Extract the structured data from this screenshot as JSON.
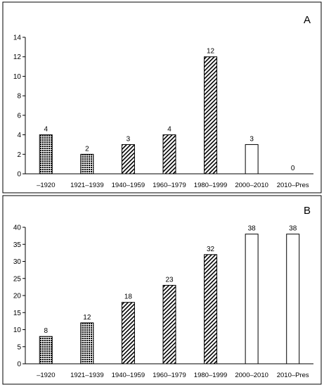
{
  "chart_data": [
    {
      "type": "bar",
      "title": "A",
      "categories": [
        "–1920",
        "1921–1939",
        "1940–1959",
        "1960–1979",
        "1980–1999",
        "2000–2010",
        "2010–Pres"
      ],
      "values": [
        4,
        2,
        3,
        4,
        12,
        3,
        0
      ],
      "data_labels": [
        "4",
        "2",
        "3",
        "4",
        "12",
        "3",
        "0"
      ],
      "ylim": [
        0,
        14
      ],
      "yticks": [
        "0",
        "2",
        "4",
        "6",
        "8",
        "10",
        "12",
        "14"
      ],
      "bar_styles": [
        "dotted",
        "dotted",
        "hatched",
        "hatched",
        "hatched",
        "open",
        "open"
      ],
      "grid": false
    },
    {
      "type": "bar",
      "title": "B",
      "categories": [
        "–1920",
        "1921–1939",
        "1940–1959",
        "1960–1979",
        "1980–1999",
        "2000–2010",
        "2010–Pres"
      ],
      "values": [
        8,
        12,
        18,
        23,
        32,
        38,
        38
      ],
      "data_labels": [
        "8",
        "12",
        "18",
        "23",
        "32",
        "38",
        "38"
      ],
      "ylim": [
        0,
        40
      ],
      "yticks": [
        "0",
        "5",
        "10",
        "15",
        "20",
        "25",
        "30",
        "35",
        "40"
      ],
      "bar_styles": [
        "dotted",
        "dotted",
        "hatched",
        "hatched",
        "hatched",
        "open",
        "open"
      ],
      "grid": false
    }
  ]
}
